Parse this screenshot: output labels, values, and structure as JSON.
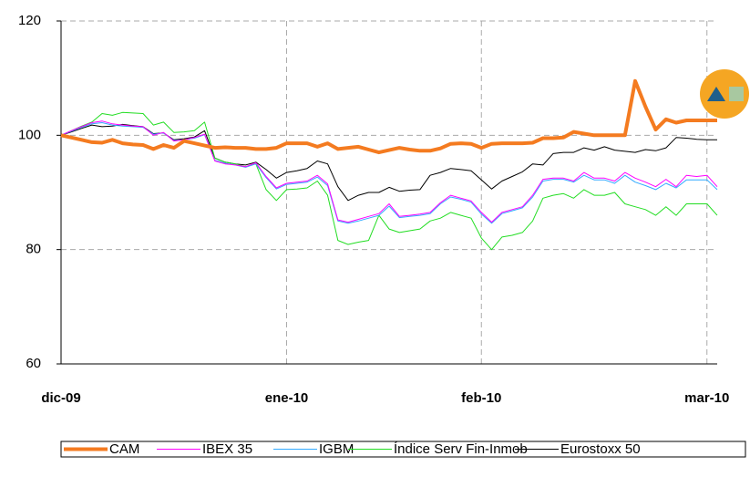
{
  "chart_data": {
    "type": "line",
    "x": [
      0,
      1,
      2,
      3,
      4,
      5,
      6,
      7,
      8,
      9,
      10,
      11,
      12,
      13,
      14,
      15,
      16,
      17,
      18,
      19,
      20,
      21,
      22,
      23,
      24,
      25,
      26,
      27,
      28,
      29,
      30,
      31,
      32,
      33,
      34,
      35,
      36,
      37,
      38,
      39,
      40,
      41,
      42,
      43,
      44,
      45,
      46,
      47,
      48,
      49,
      50,
      51,
      52,
      53,
      54,
      55,
      56,
      57,
      58,
      59,
      60,
      61,
      62,
      63,
      64
    ],
    "xlim": [
      0,
      64
    ],
    "xticks": [
      {
        "value": 0,
        "label": "dic-09"
      },
      {
        "value": 22,
        "label": "ene-10"
      },
      {
        "value": 41,
        "label": "feb-10"
      },
      {
        "value": 63,
        "label": "mar-10"
      }
    ],
    "ylim": [
      60,
      120
    ],
    "yticks": [
      60,
      80,
      100,
      120
    ],
    "grid": true,
    "legend": "bottom",
    "series": [
      {
        "name": "CAM",
        "color": "#f47b20",
        "width": 4,
        "values": [
          100,
          99.6,
          99.2,
          98.8,
          98.7,
          99.2,
          98.6,
          98.4,
          98.3,
          97.6,
          98.3,
          97.8,
          99,
          98.6,
          98.2,
          97.8,
          97.9,
          97.8,
          97.8,
          97.6,
          97.6,
          97.8,
          98.6,
          98.6,
          98.6,
          98.0,
          98.6,
          97.6,
          97.8,
          98.0,
          97.5,
          97.0,
          97.4,
          97.8,
          97.5,
          97.3,
          97.3,
          97.7,
          98.5,
          98.6,
          98.5,
          97.8,
          98.5,
          98.6,
          98.6,
          98.6,
          98.7,
          99.5,
          99.5,
          99.6,
          100.6,
          100.3,
          100.0,
          100.0,
          100.0,
          100.0,
          109.5,
          105,
          101,
          102.8,
          102.2,
          102.6,
          102.6,
          102.6,
          102.6
        ]
      },
      {
        "name": "IBEX 35",
        "color": "#ff00ff",
        "width": 1,
        "values": [
          100,
          100.8,
          101.5,
          102.2,
          102.5,
          102.0,
          101.8,
          101.6,
          101.5,
          100.0,
          100.5,
          99.0,
          99.2,
          99.6,
          100.2,
          95.5,
          95.0,
          94.8,
          94.5,
          95.2,
          92.8,
          90.8,
          91.6,
          91.8,
          92.0,
          93.0,
          91.5,
          85.2,
          84.8,
          85.3,
          85.8,
          86.3,
          88.0,
          85.8,
          86.0,
          86.2,
          86.5,
          88.2,
          89.5,
          89.0,
          88.5,
          86.5,
          84.8,
          86.5,
          87.0,
          87.5,
          89.5,
          92.3,
          92.5,
          92.5,
          92.0,
          93.5,
          92.5,
          92.5,
          92.0,
          93.5,
          92.5,
          91.8,
          91.0,
          92.3,
          91.0,
          93.0,
          92.8,
          93.0,
          91.0
        ]
      },
      {
        "name": "IGBM",
        "color": "#33aaff",
        "width": 1,
        "values": [
          100,
          100.7,
          101.4,
          102.0,
          102.2,
          101.8,
          101.6,
          101.5,
          101.4,
          100.2,
          100.4,
          99.1,
          99.2,
          99.5,
          100.1,
          95.6,
          95.1,
          94.8,
          94.4,
          95.0,
          92.6,
          90.6,
          91.4,
          91.6,
          91.8,
          92.7,
          91.2,
          85.0,
          84.6,
          85.0,
          85.5,
          86.0,
          87.6,
          85.6,
          85.8,
          86.0,
          86.3,
          88.0,
          89.2,
          88.8,
          88.3,
          86.2,
          84.6,
          86.3,
          86.8,
          87.3,
          89.2,
          92.0,
          92.3,
          92.3,
          91.8,
          93.0,
          92.2,
          92.2,
          91.6,
          93.0,
          91.8,
          91.2,
          90.5,
          91.6,
          90.8,
          92.2,
          92.2,
          92.2,
          90.5
        ]
      },
      {
        "name": "Índice Serv Fin-Inmob",
        "color": "#22dd22",
        "width": 1,
        "values": [
          100,
          100.8,
          101.6,
          102.3,
          103.8,
          103.5,
          104.0,
          103.9,
          103.8,
          101.8,
          102.3,
          100.5,
          100.6,
          100.8,
          102.3,
          96.0,
          95.3,
          95.0,
          94.5,
          95.0,
          90.5,
          88.6,
          90.5,
          90.6,
          90.8,
          92.0,
          89.5,
          81.6,
          80.9,
          81.3,
          81.6,
          86.0,
          83.6,
          83.0,
          83.3,
          83.6,
          85.0,
          85.5,
          86.5,
          86.0,
          85.5,
          82.0,
          80.0,
          82.2,
          82.5,
          83.0,
          85.0,
          89.0,
          89.5,
          89.8,
          89.0,
          90.5,
          89.5,
          89.5,
          90.0,
          88.0,
          87.5,
          87.0,
          86.0,
          87.5,
          86.0,
          88.0,
          88.0,
          88.0,
          86.0
        ]
      },
      {
        "name": "Eurostoxx 50",
        "color": "#000000",
        "width": 1,
        "values": [
          100,
          100.6,
          101.2,
          101.8,
          101.5,
          101.6,
          101.9,
          101.7,
          101.5,
          100.3,
          100.4,
          99.2,
          99.4,
          99.7,
          100.8,
          96.0,
          95.3,
          95.0,
          94.8,
          95.3,
          94.0,
          92.5,
          93.5,
          93.8,
          94.2,
          95.5,
          95.0,
          91.0,
          88.6,
          89.5,
          90.0,
          90.0,
          90.9,
          90.2,
          90.4,
          90.5,
          93.0,
          93.5,
          94.2,
          94.0,
          93.8,
          92.2,
          90.6,
          92.0,
          92.8,
          93.6,
          95.0,
          94.8,
          96.8,
          97.0,
          97.0,
          97.8,
          97.4,
          98.0,
          97.4,
          97.2,
          97.0,
          97.5,
          97.3,
          97.8,
          99.6,
          99.5,
          99.3,
          99.2,
          99.2
        ]
      }
    ]
  }
}
